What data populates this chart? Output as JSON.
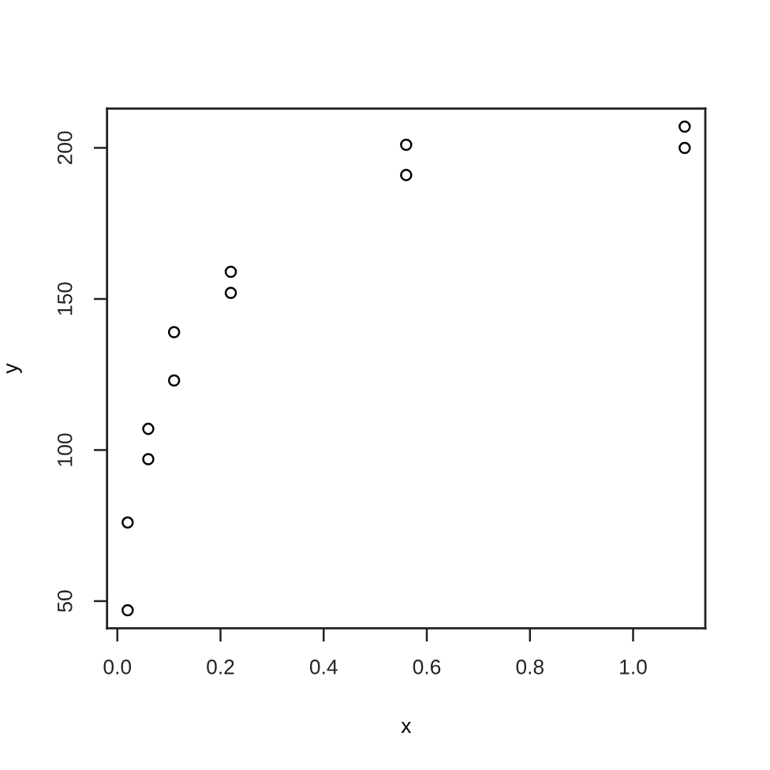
{
  "chart_data": {
    "type": "scatter",
    "xlabel": "x",
    "ylabel": "y",
    "x": [
      0.02,
      0.02,
      0.06,
      0.06,
      0.11,
      0.11,
      0.22,
      0.22,
      0.56,
      0.56,
      1.1,
      1.1
    ],
    "series": [
      {
        "color": "#000000",
        "values": [
          76,
          47,
          97,
          107,
          123,
          139,
          159,
          152,
          191,
          201,
          207,
          200
        ]
      }
    ],
    "xlim": [
      -0.02,
      1.14
    ],
    "ylim": [
      41,
      213
    ],
    "xticks": [
      {
        "value": 0,
        "label": "0.0"
      },
      0.2,
      0.4,
      0.6,
      0.8,
      {
        "value": 1,
        "label": "1.0"
      }
    ],
    "yticks": [
      50,
      100,
      150,
      200
    ],
    "marker": "circle"
  }
}
